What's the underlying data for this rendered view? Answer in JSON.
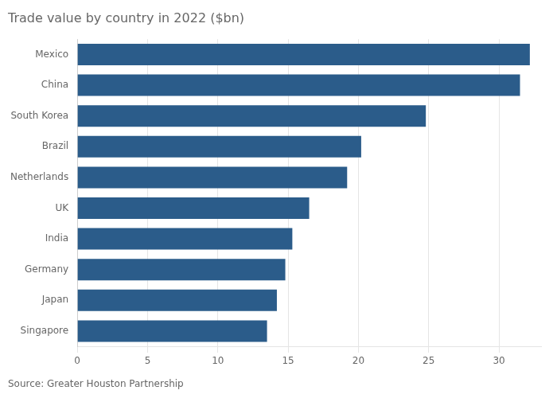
{
  "chart_data": {
    "type": "bar",
    "orientation": "horizontal",
    "title": "Trade value by country in 2022 ($bn)",
    "annotations": [
      "Source: Greater Houston Partnership"
    ],
    "categories": [
      "Singapore",
      "Japan",
      "Germany",
      "India",
      "UK",
      "Netherlands",
      "Brazil",
      "South Korea",
      "China",
      "Mexico"
    ],
    "values": [
      13.5,
      14.2,
      14.8,
      15.3,
      16.5,
      19.2,
      20.2,
      24.8,
      31.5,
      32.2
    ],
    "color": "#2b5c8a",
    "xlim": [
      0,
      33
    ],
    "xticks": [
      0,
      5,
      10,
      15,
      20,
      25,
      30
    ],
    "grid": true
  }
}
